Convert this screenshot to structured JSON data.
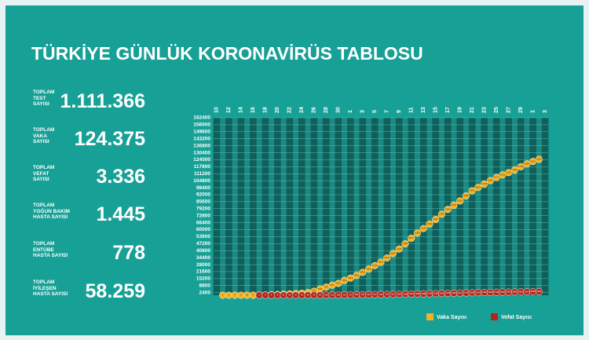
{
  "header": {
    "title": "TÜRKİYE GÜNLÜK KORONAVİRÜS TABLOSU"
  },
  "stats": [
    {
      "label": "TOPLAM\nTEST\nSAYISI",
      "value": "1.111.366"
    },
    {
      "label": "TOPLAM\nVAKA\nSAYISI",
      "value": "124.375"
    },
    {
      "label": "TOPLAM\nVEFAT\nSAYISI",
      "value": "3.336"
    },
    {
      "label": "TOPLAM\nYOĞUN BAKIM\nHASTA SAYISI",
      "value": "1.445"
    },
    {
      "label": "TOPLAM\nENTÜBE\nHASTA SAYISI",
      "value": "778"
    },
    {
      "label": "TOPLAM\nİYİLEŞEN\nHASTA SAYISI",
      "value": "58.259"
    }
  ],
  "chart_data": {
    "type": "line",
    "categories": [
      "10",
      null,
      "12",
      null,
      "14",
      null,
      "16",
      null,
      "18",
      null,
      "20",
      null,
      "22",
      null,
      "24",
      null,
      "26",
      null,
      "28",
      null,
      "30",
      null,
      "1",
      null,
      "3",
      null,
      "5",
      null,
      "7",
      null,
      "9",
      null,
      "11",
      null,
      "13",
      null,
      "15",
      null,
      "17",
      null,
      "19",
      null,
      "21",
      null,
      "23",
      null,
      "25",
      null,
      "27",
      null,
      "29",
      null,
      "1",
      null,
      "3"
    ],
    "series": [
      {
        "name": "Vaka Sayısı",
        "color": "#f4b223",
        "values": [
          null,
          1,
          1,
          5,
          6,
          18,
          47,
          98,
          191,
          359,
          670,
          947,
          1236,
          1529,
          1872,
          2433,
          3629,
          5698,
          7402,
          9217,
          10827,
          13531,
          15679,
          18135,
          20921,
          23934,
          27069,
          30217,
          34109,
          38226,
          42282,
          47029,
          52167,
          56956,
          61049,
          65111,
          69392,
          74193,
          78546,
          82329,
          86306,
          90980,
          95591,
          98674,
          101790,
          104912,
          107773,
          110130,
          112261,
          114653,
          117589,
          120204,
          122392,
          124375,
          null
        ]
      },
      {
        "name": "Vefat Sayısı",
        "color": "#b3261e",
        "values": [
          null,
          null,
          null,
          null,
          null,
          null,
          null,
          1,
          2,
          4,
          9,
          21,
          30,
          37,
          44,
          59,
          75,
          92,
          108,
          131,
          168,
          214,
          277,
          356,
          425,
          501,
          574,
          649,
          725,
          812,
          908,
          1006,
          1101,
          1198,
          1296,
          1403,
          1518,
          1643,
          1769,
          1890,
          2017,
          2140,
          2259,
          2376,
          2491,
          2600,
          2706,
          2805,
          2900,
          2992,
          3081,
          3174,
          3258,
          3336,
          null
        ]
      }
    ],
    "ylim": [
      0,
      162400
    ],
    "yticks": [
      2400,
      8800,
      15200,
      21600,
      28000,
      34400,
      40800,
      47200,
      53600,
      60000,
      66400,
      72800,
      79200,
      85600,
      92000,
      98400,
      104800,
      111200,
      117600,
      124000,
      130400,
      136800,
      143200,
      149600,
      156000,
      162400
    ],
    "grid": true
  }
}
